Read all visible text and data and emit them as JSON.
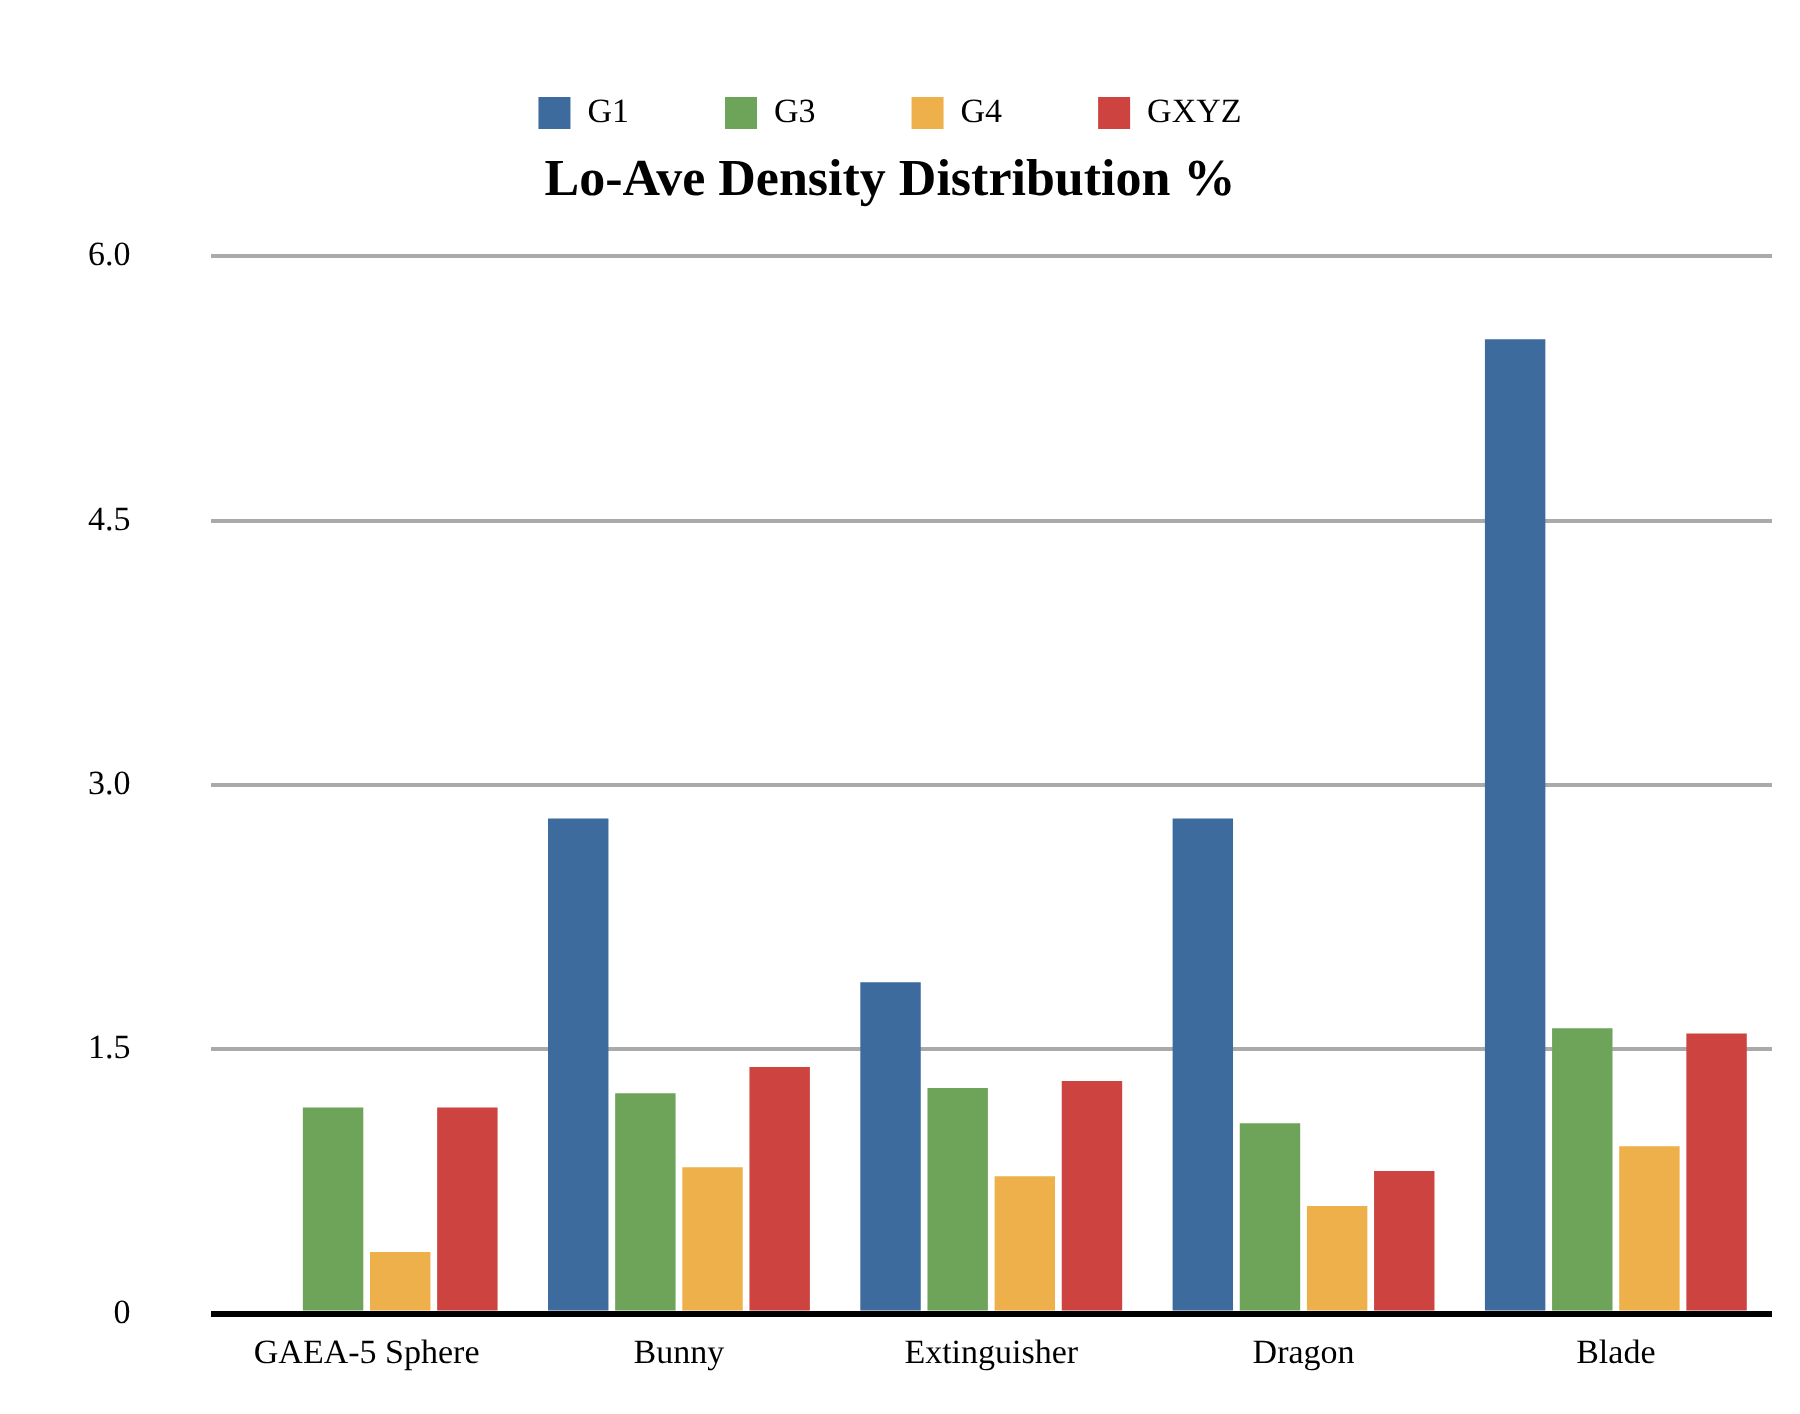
{
  "chart_data": {
    "type": "bar",
    "title": "Lo-Ave Density Distribution %",
    "categories": [
      "GAEA-5 Sphere",
      "Bunny",
      "Extinguisher",
      "Dragon",
      "Blade"
    ],
    "series": [
      {
        "name": "G1",
        "color": "#3d6b9e",
        "values": [
          null,
          2.81,
          1.88,
          2.81,
          5.53
        ]
      },
      {
        "name": "G3",
        "color": "#6ea45a",
        "values": [
          1.17,
          1.25,
          1.28,
          1.08,
          1.62
        ]
      },
      {
        "name": "G4",
        "color": "#edb04b",
        "values": [
          0.35,
          0.83,
          0.78,
          0.61,
          0.95
        ]
      },
      {
        "name": "GXYZ",
        "color": "#cc4340",
        "values": [
          1.17,
          1.4,
          1.32,
          0.81,
          1.59
        ]
      }
    ],
    "ylim": [
      0,
      6
    ],
    "yticks": [
      {
        "value": 0,
        "label": "0"
      },
      {
        "value": 1.5,
        "label": "1.5"
      },
      {
        "value": 3,
        "label": "3.0"
      },
      {
        "value": 4.5,
        "label": "4.5"
      },
      {
        "value": 6,
        "label": "6.0"
      }
    ],
    "grid": "y",
    "legend": "top"
  }
}
